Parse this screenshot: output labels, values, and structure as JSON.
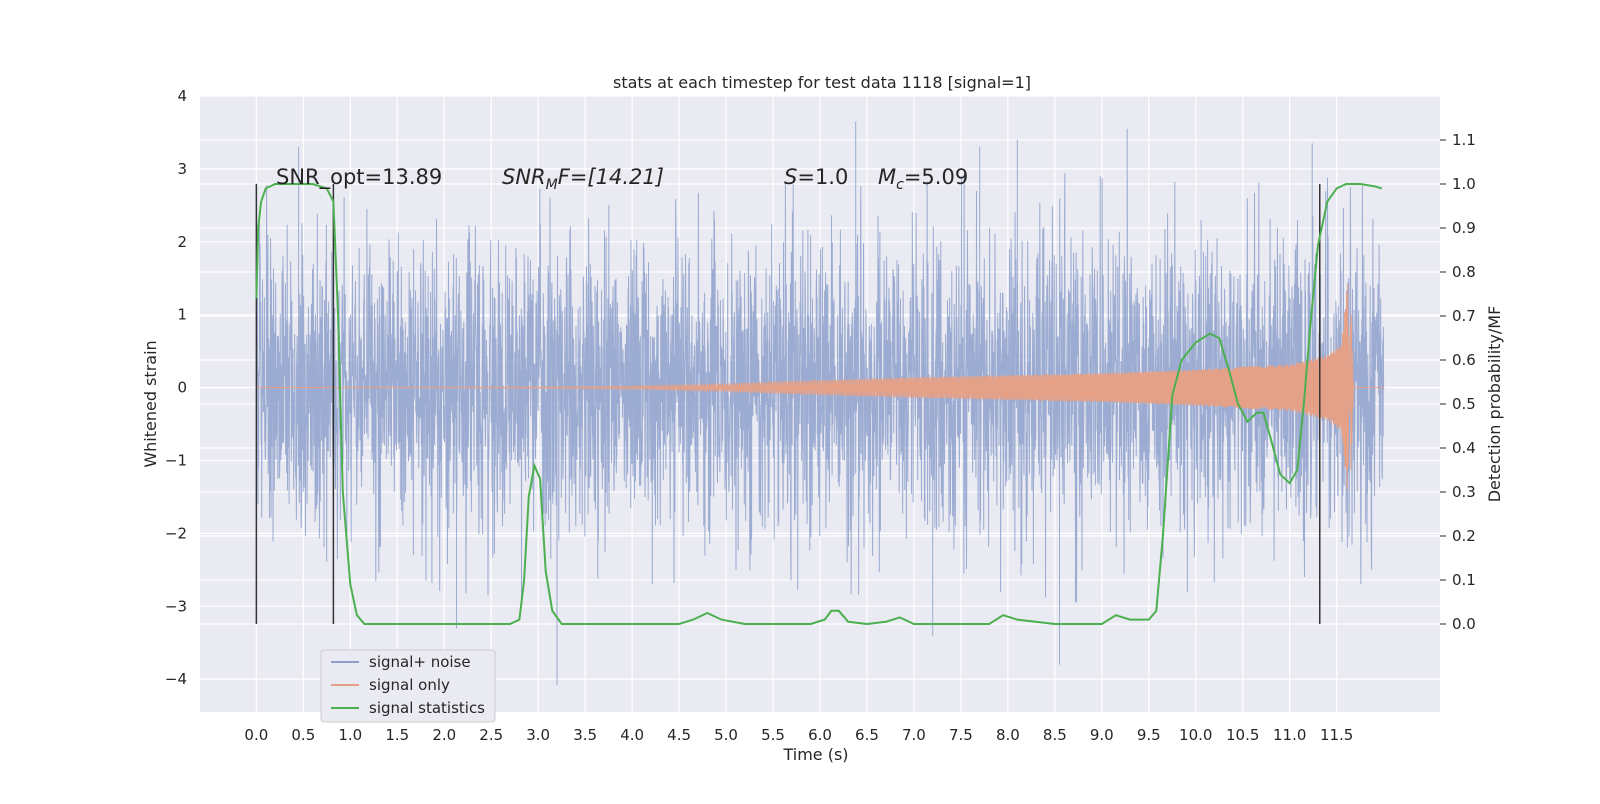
{
  "chart_data": {
    "type": "line",
    "title": "stats at each timestep for test data 1118 [signal=1]",
    "xlabel": "Time (s)",
    "ylabel_left": "Whitened strain",
    "ylabel_right": "Detection probability/MF",
    "xlim": [
      -0.6,
      12.6
    ],
    "ylim_left": [
      -4.45,
      4.0
    ],
    "ylim_right": [
      -0.2,
      1.2
    ],
    "xticks": [
      0.0,
      0.5,
      1.0,
      1.5,
      2.0,
      2.5,
      3.0,
      3.5,
      4.0,
      4.5,
      5.0,
      5.5,
      6.0,
      6.5,
      7.0,
      7.5,
      8.0,
      8.5,
      9.0,
      9.5,
      10.0,
      10.5,
      11.0,
      11.5
    ],
    "xtick_labels": [
      "0.0",
      "0.5",
      "1.0",
      "1.5",
      "2.0",
      "2.5",
      "3.0",
      "3.5",
      "4.0",
      "4.5",
      "5.0",
      "5.5",
      "6.0",
      "6.5",
      "7.0",
      "7.5",
      "8.0",
      "8.5",
      "9.0",
      "9.5",
      "10.0",
      "10.5",
      "11.0",
      "11.5"
    ],
    "yticks_left": [
      -4,
      -3,
      -2,
      -1,
      0,
      1,
      2,
      3,
      4
    ],
    "ytick_labels_left": [
      "−4",
      "−3",
      "−2",
      "−1",
      "0",
      "1",
      "2",
      "3",
      "4"
    ],
    "yticks_right": [
      0.0,
      0.1,
      0.2,
      0.3,
      0.4,
      0.5,
      0.6,
      0.7,
      0.8,
      0.9,
      1.0,
      1.1
    ],
    "ytick_labels_right": [
      "0.0",
      "0.1",
      "0.2",
      "0.3",
      "0.4",
      "0.5",
      "0.6",
      "0.7",
      "0.8",
      "0.9",
      "1.0",
      "1.1"
    ],
    "grid": true,
    "legend_position": "lower-left",
    "annotations": {
      "snr_opt": "SNR_opt=13.89",
      "snr_mf_symbol": "SNR",
      "snr_mf_sub": "M",
      "snr_mf_rest": "F=[14.21]",
      "s_symbol": "S",
      "s_rest": "=1.0",
      "mc_symbol": "M",
      "mc_sub": "c",
      "mc_rest": "=5.09"
    },
    "vertical_lines_x": [
      0.0,
      0.82,
      11.32
    ],
    "series": [
      {
        "name": "signal+ noise",
        "color": "#8da0cb",
        "x_range": [
          0.0,
          12.0
        ],
        "envelope_upper": [
          [
            0.0,
            2.8
          ],
          [
            1.0,
            2.6
          ],
          [
            2.0,
            2.7
          ],
          [
            3.0,
            2.8
          ],
          [
            4.0,
            2.6
          ],
          [
            5.0,
            2.7
          ],
          [
            6.0,
            2.9
          ],
          [
            7.0,
            2.8
          ],
          [
            8.0,
            3.0
          ],
          [
            9.0,
            2.9
          ],
          [
            10.0,
            2.8
          ],
          [
            11.0,
            3.0
          ],
          [
            12.0,
            2.7
          ]
        ],
        "envelope_lower": [
          [
            0.0,
            -2.7
          ],
          [
            1.0,
            -2.6
          ],
          [
            2.0,
            -2.8
          ],
          [
            3.0,
            -2.9
          ],
          [
            4.0,
            -2.7
          ],
          [
            5.0,
            -2.7
          ],
          [
            6.0,
            -2.8
          ],
          [
            7.0,
            -2.9
          ],
          [
            8.0,
            -2.8
          ],
          [
            9.0,
            -3.0
          ],
          [
            10.0,
            -2.8
          ],
          [
            11.0,
            -3.0
          ],
          [
            12.0,
            -2.6
          ]
        ],
        "peaks": [
          [
            0.45,
            3.3
          ],
          [
            3.2,
            -4.08
          ],
          [
            6.38,
            3.65
          ],
          [
            8.55,
            -3.8
          ],
          [
            7.2,
            -3.4
          ],
          [
            9.27,
            3.55
          ],
          [
            11.24,
            3.35
          ],
          [
            2.13,
            -3.3
          ],
          [
            7.7,
            3.3
          ],
          [
            8.1,
            3.4
          ]
        ]
      },
      {
        "name": "signal only",
        "color": "#e5a188",
        "chirp_amplitude": [
          [
            0.0,
            0.0
          ],
          [
            3.0,
            0.01
          ],
          [
            4.0,
            0.02
          ],
          [
            5.0,
            0.05
          ],
          [
            5.5,
            0.08
          ],
          [
            6.0,
            0.1
          ],
          [
            7.0,
            0.14
          ],
          [
            8.0,
            0.17
          ],
          [
            9.0,
            0.2
          ],
          [
            10.0,
            0.25
          ],
          [
            11.0,
            0.32
          ],
          [
            11.4,
            0.45
          ],
          [
            11.55,
            0.6
          ],
          [
            11.62,
            1.5
          ],
          [
            11.65,
            -1.3
          ],
          [
            11.68,
            0.0
          ],
          [
            12.0,
            0.0
          ]
        ]
      },
      {
        "name": "signal statistics",
        "color": "#4caf50",
        "x": [
          0.0,
          0.02,
          0.05,
          0.1,
          0.2,
          0.4,
          0.6,
          0.75,
          0.82,
          0.87,
          0.92,
          1.0,
          1.07,
          1.15,
          1.3,
          2.0,
          2.7,
          2.8,
          2.85,
          2.9,
          2.96,
          3.02,
          3.08,
          3.15,
          3.25,
          3.5,
          4.0,
          4.5,
          4.65,
          4.8,
          4.95,
          5.2,
          5.5,
          5.9,
          6.05,
          6.12,
          6.2,
          6.3,
          6.5,
          6.7,
          6.85,
          7.0,
          7.5,
          7.8,
          7.95,
          8.1,
          8.5,
          9.0,
          9.15,
          9.3,
          9.5,
          9.58,
          9.65,
          9.75,
          9.85,
          10.0,
          10.15,
          10.25,
          10.35,
          10.45,
          10.55,
          10.65,
          10.72,
          10.8,
          10.9,
          11.0,
          11.08,
          11.15,
          11.22,
          11.3,
          11.4,
          11.5,
          11.6,
          11.75,
          11.9,
          11.98
        ],
        "y": [
          0.74,
          0.9,
          0.96,
          0.99,
          1.0,
          1.0,
          1.0,
          0.99,
          0.96,
          0.7,
          0.3,
          0.09,
          0.02,
          0.0,
          0.0,
          0.0,
          0.0,
          0.01,
          0.1,
          0.29,
          0.36,
          0.33,
          0.12,
          0.03,
          0.0,
          0.0,
          0.0,
          0.0,
          0.01,
          0.025,
          0.01,
          0.0,
          0.0,
          0.0,
          0.01,
          0.03,
          0.03,
          0.005,
          0.0,
          0.005,
          0.015,
          0.0,
          0.0,
          0.0,
          0.02,
          0.01,
          0.0,
          0.0,
          0.02,
          0.01,
          0.01,
          0.03,
          0.2,
          0.52,
          0.6,
          0.64,
          0.66,
          0.65,
          0.58,
          0.5,
          0.46,
          0.48,
          0.48,
          0.42,
          0.34,
          0.32,
          0.35,
          0.5,
          0.68,
          0.86,
          0.96,
          0.99,
          1.0,
          1.0,
          0.995,
          0.99
        ]
      }
    ]
  }
}
